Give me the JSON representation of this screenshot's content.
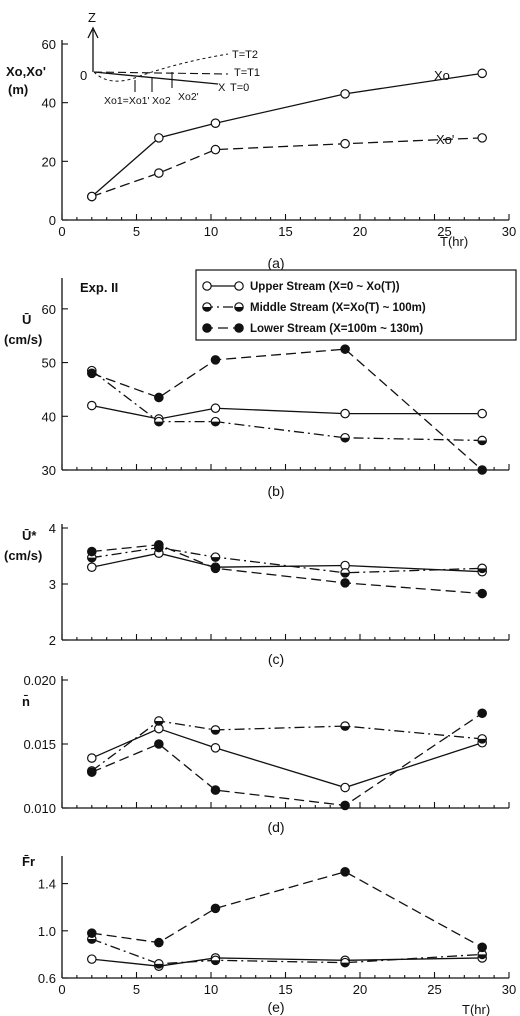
{
  "chart_data": [
    {
      "type": "line",
      "caption": "(a)",
      "ylabel": "Xo,Xo'",
      "yunit": "(m)",
      "xlabel": "T(hr)",
      "xlim": [
        0,
        30
      ],
      "ylim": [
        0,
        60
      ],
      "xticks": [
        0,
        5,
        10,
        15,
        20,
        25,
        30
      ],
      "yticks": [
        0,
        20,
        40,
        60
      ],
      "series": [
        {
          "name": "Xo",
          "style": "solid",
          "marker": "open",
          "x": [
            2,
            6.5,
            10.3,
            19,
            28.2
          ],
          "y": [
            8,
            28,
            33,
            43,
            50
          ]
        },
        {
          "name": "Xo'",
          "style": "dashed",
          "marker": "open",
          "x": [
            2,
            6.5,
            10.3,
            19,
            28.2
          ],
          "y": [
            8,
            16,
            24,
            26,
            28
          ]
        }
      ],
      "inset": {
        "axis_label": "Z",
        "origin_label": "0",
        "curves": [
          "T=T2",
          "T=T1",
          "T=0"
        ],
        "points": [
          "Xo1=Xo1'",
          "Xo2",
          "Xo2'",
          "X"
        ]
      }
    },
    {
      "type": "line",
      "caption": "(b)",
      "title": "Exp. II",
      "ylabel": "Ū",
      "yunit": "(cm/s)",
      "xlim": [
        0,
        30
      ],
      "ylim": [
        30,
        65
      ],
      "yticks": [
        30,
        40,
        50,
        60
      ],
      "legend": [
        {
          "label": "Upper Stream (X=0 ~ Xo(T))",
          "style": "solid",
          "marker": "open"
        },
        {
          "label": "Middle Stream (X=Xo(T) ~ 100m)",
          "style": "dashdot",
          "marker": "half"
        },
        {
          "label": "Lower Stream (X=100m ~ 130m)",
          "style": "dashed",
          "marker": "filled"
        }
      ],
      "series": [
        {
          "style": "solid",
          "marker": "open",
          "x": [
            2,
            6.5,
            10.3,
            19,
            28.2
          ],
          "y": [
            42,
            39.5,
            41.5,
            40.5,
            40.5
          ]
        },
        {
          "style": "dashdot",
          "marker": "half",
          "x": [
            2,
            6.5,
            10.3,
            19,
            28.2
          ],
          "y": [
            48.5,
            39,
            39,
            36,
            35.5
          ]
        },
        {
          "style": "dashed",
          "marker": "filled",
          "x": [
            2,
            6.5,
            10.3,
            19,
            28.2
          ],
          "y": [
            48,
            43.5,
            50.5,
            52.5,
            30
          ]
        }
      ]
    },
    {
      "type": "line",
      "caption": "(c)",
      "ylabel": "Ū*",
      "yunit": "(cm/s)",
      "xlim": [
        0,
        30
      ],
      "ylim": [
        2,
        4
      ],
      "yticks": [
        2,
        3,
        4
      ],
      "series": [
        {
          "style": "solid",
          "marker": "open",
          "x": [
            2,
            6.5,
            10.3,
            19,
            28.2
          ],
          "y": [
            3.3,
            3.55,
            3.3,
            3.33,
            3.22
          ]
        },
        {
          "style": "dashdot",
          "marker": "half",
          "x": [
            2,
            6.5,
            10.3,
            19,
            28.2
          ],
          "y": [
            3.47,
            3.65,
            3.48,
            3.2,
            3.28
          ]
        },
        {
          "style": "dashed",
          "marker": "filled",
          "x": [
            2,
            6.5,
            10.3,
            19,
            28.2
          ],
          "y": [
            3.58,
            3.7,
            3.28,
            3.02,
            2.83
          ]
        }
      ]
    },
    {
      "type": "line",
      "caption": "(d)",
      "ylabel": "n̄",
      "xlim": [
        0,
        30
      ],
      "ylim": [
        0.01,
        0.02
      ],
      "yticks": [
        0.01,
        0.015,
        0.02
      ],
      "ytick_labels": [
        "0.010",
        "0.015",
        "0.020"
      ],
      "series": [
        {
          "style": "solid",
          "marker": "open",
          "x": [
            2,
            6.5,
            10.3,
            19,
            28.2
          ],
          "y": [
            0.0139,
            0.0162,
            0.0147,
            0.0116,
            0.0151
          ]
        },
        {
          "style": "dashdot",
          "marker": "half",
          "x": [
            2,
            6.5,
            10.3,
            19,
            28.2
          ],
          "y": [
            0.0129,
            0.0168,
            0.0161,
            0.0164,
            0.0154
          ]
        },
        {
          "style": "dashed",
          "marker": "filled",
          "x": [
            2,
            6.5,
            10.3,
            19,
            28.2
          ],
          "y": [
            0.0128,
            0.015,
            0.0114,
            0.0102,
            0.0174
          ]
        }
      ]
    },
    {
      "type": "line",
      "caption": "(e)",
      "ylabel": "F̄r",
      "xlabel": "T(hr)",
      "xlim": [
        0,
        30
      ],
      "ylim": [
        0.6,
        1.6
      ],
      "xticks": [
        0,
        5,
        10,
        15,
        20,
        25,
        30
      ],
      "yticks": [
        0.6,
        1.0,
        1.4
      ],
      "ytick_labels": [
        "0.6",
        "1.0",
        "1.4"
      ],
      "series": [
        {
          "style": "solid",
          "marker": "open",
          "x": [
            2,
            6.5,
            10.3,
            19,
            28.2
          ],
          "y": [
            0.76,
            0.7,
            0.77,
            0.75,
            0.77
          ]
        },
        {
          "style": "dashdot",
          "marker": "half",
          "x": [
            2,
            6.5,
            10.3,
            19,
            28.2
          ],
          "y": [
            0.93,
            0.72,
            0.75,
            0.73,
            0.8
          ]
        },
        {
          "style": "dashed",
          "marker": "filled",
          "x": [
            2,
            6.5,
            10.3,
            19,
            28.2
          ],
          "y": [
            0.98,
            0.9,
            1.19,
            1.5,
            0.86
          ]
        }
      ]
    }
  ]
}
